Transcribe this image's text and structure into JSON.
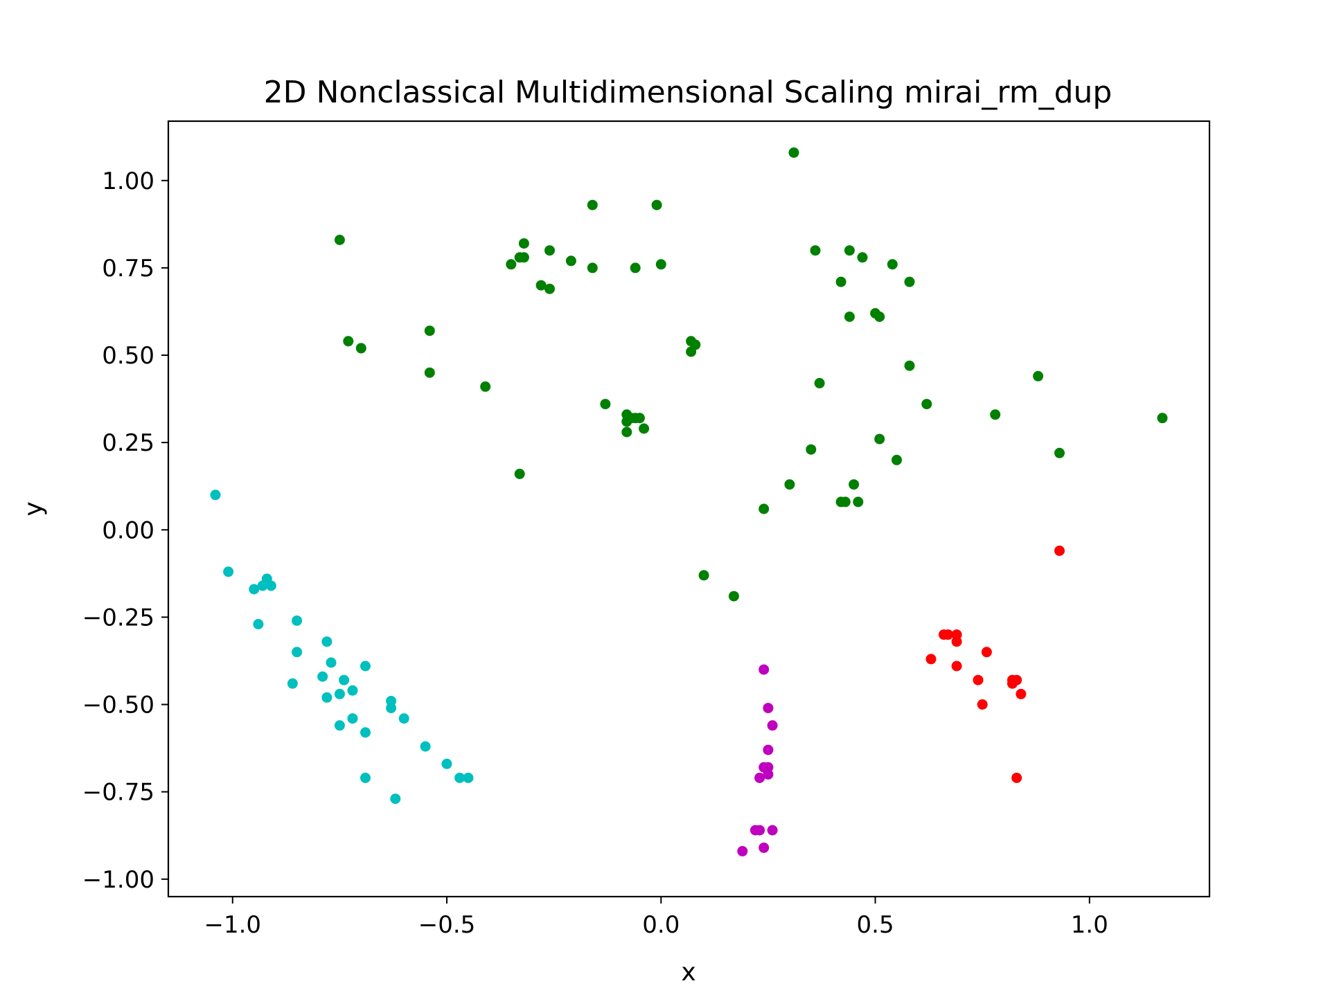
{
  "chart_data": {
    "type": "scatter",
    "title": "2D Nonclassical Multidimensional Scaling mirai_rm_dup",
    "xlabel": "x",
    "ylabel": "y",
    "xlim": [
      -1.15,
      1.28
    ],
    "ylim": [
      -1.05,
      1.17
    ],
    "xticks": [
      {
        "value": -1.0,
        "label": "−1.0"
      },
      {
        "value": -0.5,
        "label": "−0.5"
      },
      {
        "value": 0.0,
        "label": "0.0"
      },
      {
        "value": 0.5,
        "label": "0.5"
      },
      {
        "value": 1.0,
        "label": "1.0"
      }
    ],
    "yticks": [
      {
        "value": -1.0,
        "label": "−1.00"
      },
      {
        "value": -0.75,
        "label": "−0.75"
      },
      {
        "value": -0.5,
        "label": "−0.50"
      },
      {
        "value": -0.25,
        "label": "−0.25"
      },
      {
        "value": 0.0,
        "label": "0.00"
      },
      {
        "value": 0.25,
        "label": "0.25"
      },
      {
        "value": 0.5,
        "label": "0.50"
      },
      {
        "value": 0.75,
        "label": "0.75"
      },
      {
        "value": 1.0,
        "label": "1.00"
      }
    ],
    "grid": false,
    "series": [
      {
        "color": "#008000",
        "points": [
          [
            -0.75,
            0.83
          ],
          [
            -0.73,
            0.54
          ],
          [
            -0.7,
            0.52
          ],
          [
            -0.54,
            0.57
          ],
          [
            -0.54,
            0.45
          ],
          [
            -0.41,
            0.41
          ],
          [
            -0.35,
            0.76
          ],
          [
            -0.33,
            0.78
          ],
          [
            -0.32,
            0.78
          ],
          [
            -0.32,
            0.82
          ],
          [
            -0.28,
            0.7
          ],
          [
            -0.26,
            0.69
          ],
          [
            -0.26,
            0.8
          ],
          [
            -0.21,
            0.77
          ],
          [
            -0.16,
            0.75
          ],
          [
            -0.16,
            0.93
          ],
          [
            -0.13,
            0.36
          ],
          [
            -0.06,
            0.75
          ],
          [
            -0.01,
            0.93
          ],
          [
            0.0,
            0.76
          ],
          [
            -0.33,
            0.16
          ],
          [
            -0.08,
            0.33
          ],
          [
            -0.08,
            0.31
          ],
          [
            -0.07,
            0.32
          ],
          [
            -0.06,
            0.32
          ],
          [
            -0.05,
            0.32
          ],
          [
            -0.08,
            0.28
          ],
          [
            -0.04,
            0.29
          ],
          [
            0.07,
            0.54
          ],
          [
            0.08,
            0.53
          ],
          [
            0.07,
            0.51
          ],
          [
            0.1,
            -0.13
          ],
          [
            0.17,
            -0.19
          ],
          [
            0.24,
            0.06
          ],
          [
            0.31,
            1.08
          ],
          [
            0.3,
            0.13
          ],
          [
            0.35,
            0.23
          ],
          [
            0.36,
            0.8
          ],
          [
            0.37,
            0.42
          ],
          [
            0.42,
            0.71
          ],
          [
            0.42,
            0.08
          ],
          [
            0.43,
            0.08
          ],
          [
            0.44,
            0.8
          ],
          [
            0.44,
            0.61
          ],
          [
            0.45,
            0.13
          ],
          [
            0.46,
            0.08
          ],
          [
            0.47,
            0.78
          ],
          [
            0.5,
            0.62
          ],
          [
            0.51,
            0.61
          ],
          [
            0.51,
            0.26
          ],
          [
            0.54,
            0.76
          ],
          [
            0.55,
            0.2
          ],
          [
            0.58,
            0.71
          ],
          [
            0.58,
            0.47
          ],
          [
            0.62,
            0.36
          ],
          [
            0.78,
            0.33
          ],
          [
            0.88,
            0.44
          ],
          [
            0.93,
            0.22
          ],
          [
            1.17,
            0.32
          ]
        ]
      },
      {
        "color": "#00bfbf",
        "points": [
          [
            -1.04,
            0.1
          ],
          [
            -1.01,
            -0.12
          ],
          [
            -0.95,
            -0.17
          ],
          [
            -0.94,
            -0.27
          ],
          [
            -0.93,
            -0.16
          ],
          [
            -0.92,
            -0.14
          ],
          [
            -0.91,
            -0.16
          ],
          [
            -0.85,
            -0.26
          ],
          [
            -0.85,
            -0.35
          ],
          [
            -0.86,
            -0.44
          ],
          [
            -0.79,
            -0.42
          ],
          [
            -0.78,
            -0.32
          ],
          [
            -0.77,
            -0.38
          ],
          [
            -0.78,
            -0.48
          ],
          [
            -0.75,
            -0.47
          ],
          [
            -0.74,
            -0.43
          ],
          [
            -0.75,
            -0.56
          ],
          [
            -0.72,
            -0.46
          ],
          [
            -0.72,
            -0.54
          ],
          [
            -0.69,
            -0.39
          ],
          [
            -0.69,
            -0.58
          ],
          [
            -0.69,
            -0.71
          ],
          [
            -0.63,
            -0.49
          ],
          [
            -0.63,
            -0.51
          ],
          [
            -0.6,
            -0.54
          ],
          [
            -0.62,
            -0.77
          ],
          [
            -0.55,
            -0.62
          ],
          [
            -0.5,
            -0.67
          ],
          [
            -0.47,
            -0.71
          ],
          [
            -0.45,
            -0.71
          ]
        ]
      },
      {
        "color": "#bf00bf",
        "points": [
          [
            0.24,
            -0.4
          ],
          [
            0.25,
            -0.51
          ],
          [
            0.26,
            -0.56
          ],
          [
            0.25,
            -0.63
          ],
          [
            0.24,
            -0.68
          ],
          [
            0.25,
            -0.68
          ],
          [
            0.25,
            -0.7
          ],
          [
            0.23,
            -0.71
          ],
          [
            0.22,
            -0.86
          ],
          [
            0.23,
            -0.86
          ],
          [
            0.26,
            -0.86
          ],
          [
            0.24,
            -0.91
          ],
          [
            0.19,
            -0.92
          ]
        ]
      },
      {
        "color": "#ff0000",
        "points": [
          [
            0.93,
            -0.06
          ],
          [
            0.66,
            -0.3
          ],
          [
            0.67,
            -0.3
          ],
          [
            0.69,
            -0.3
          ],
          [
            0.69,
            -0.32
          ],
          [
            0.63,
            -0.37
          ],
          [
            0.76,
            -0.35
          ],
          [
            0.69,
            -0.39
          ],
          [
            0.74,
            -0.43
          ],
          [
            0.82,
            -0.43
          ],
          [
            0.83,
            -0.43
          ],
          [
            0.82,
            -0.44
          ],
          [
            0.84,
            -0.47
          ],
          [
            0.75,
            -0.5
          ],
          [
            0.83,
            -0.71
          ]
        ]
      }
    ]
  }
}
